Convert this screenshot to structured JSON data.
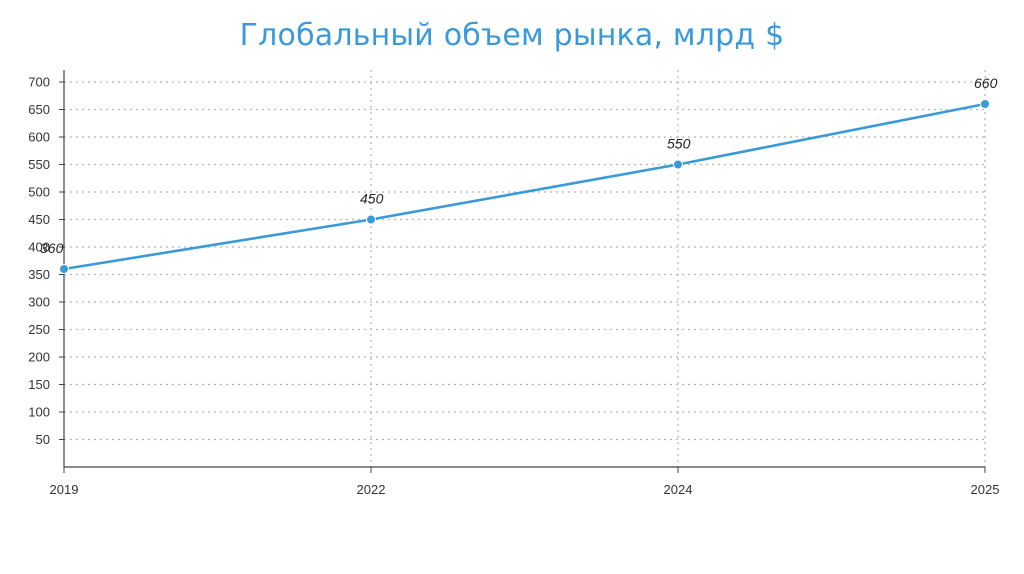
{
  "chart_data": {
    "type": "line",
    "title": "Глобальный объем рынка, млрд $",
    "xlabel": "",
    "ylabel": "",
    "categories": [
      "2019",
      "2022",
      "2024",
      "2025"
    ],
    "series": [
      {
        "values": [
          360,
          450,
          550,
          660
        ]
      }
    ],
    "data_labels": [
      "360",
      "450",
      "550",
      "660"
    ],
    "y_ticks": [
      "50",
      "100",
      "150",
      "200",
      "250",
      "300",
      "350",
      "400",
      "450",
      "500",
      "550",
      "600",
      "650",
      "700"
    ],
    "ylim": [
      0,
      700
    ],
    "grid": true,
    "legend": "none",
    "colors": {
      "line": "#3a9ad9",
      "title": "#3a9ad9",
      "grid": "#b5b5b5",
      "axis": "#444444"
    }
  }
}
